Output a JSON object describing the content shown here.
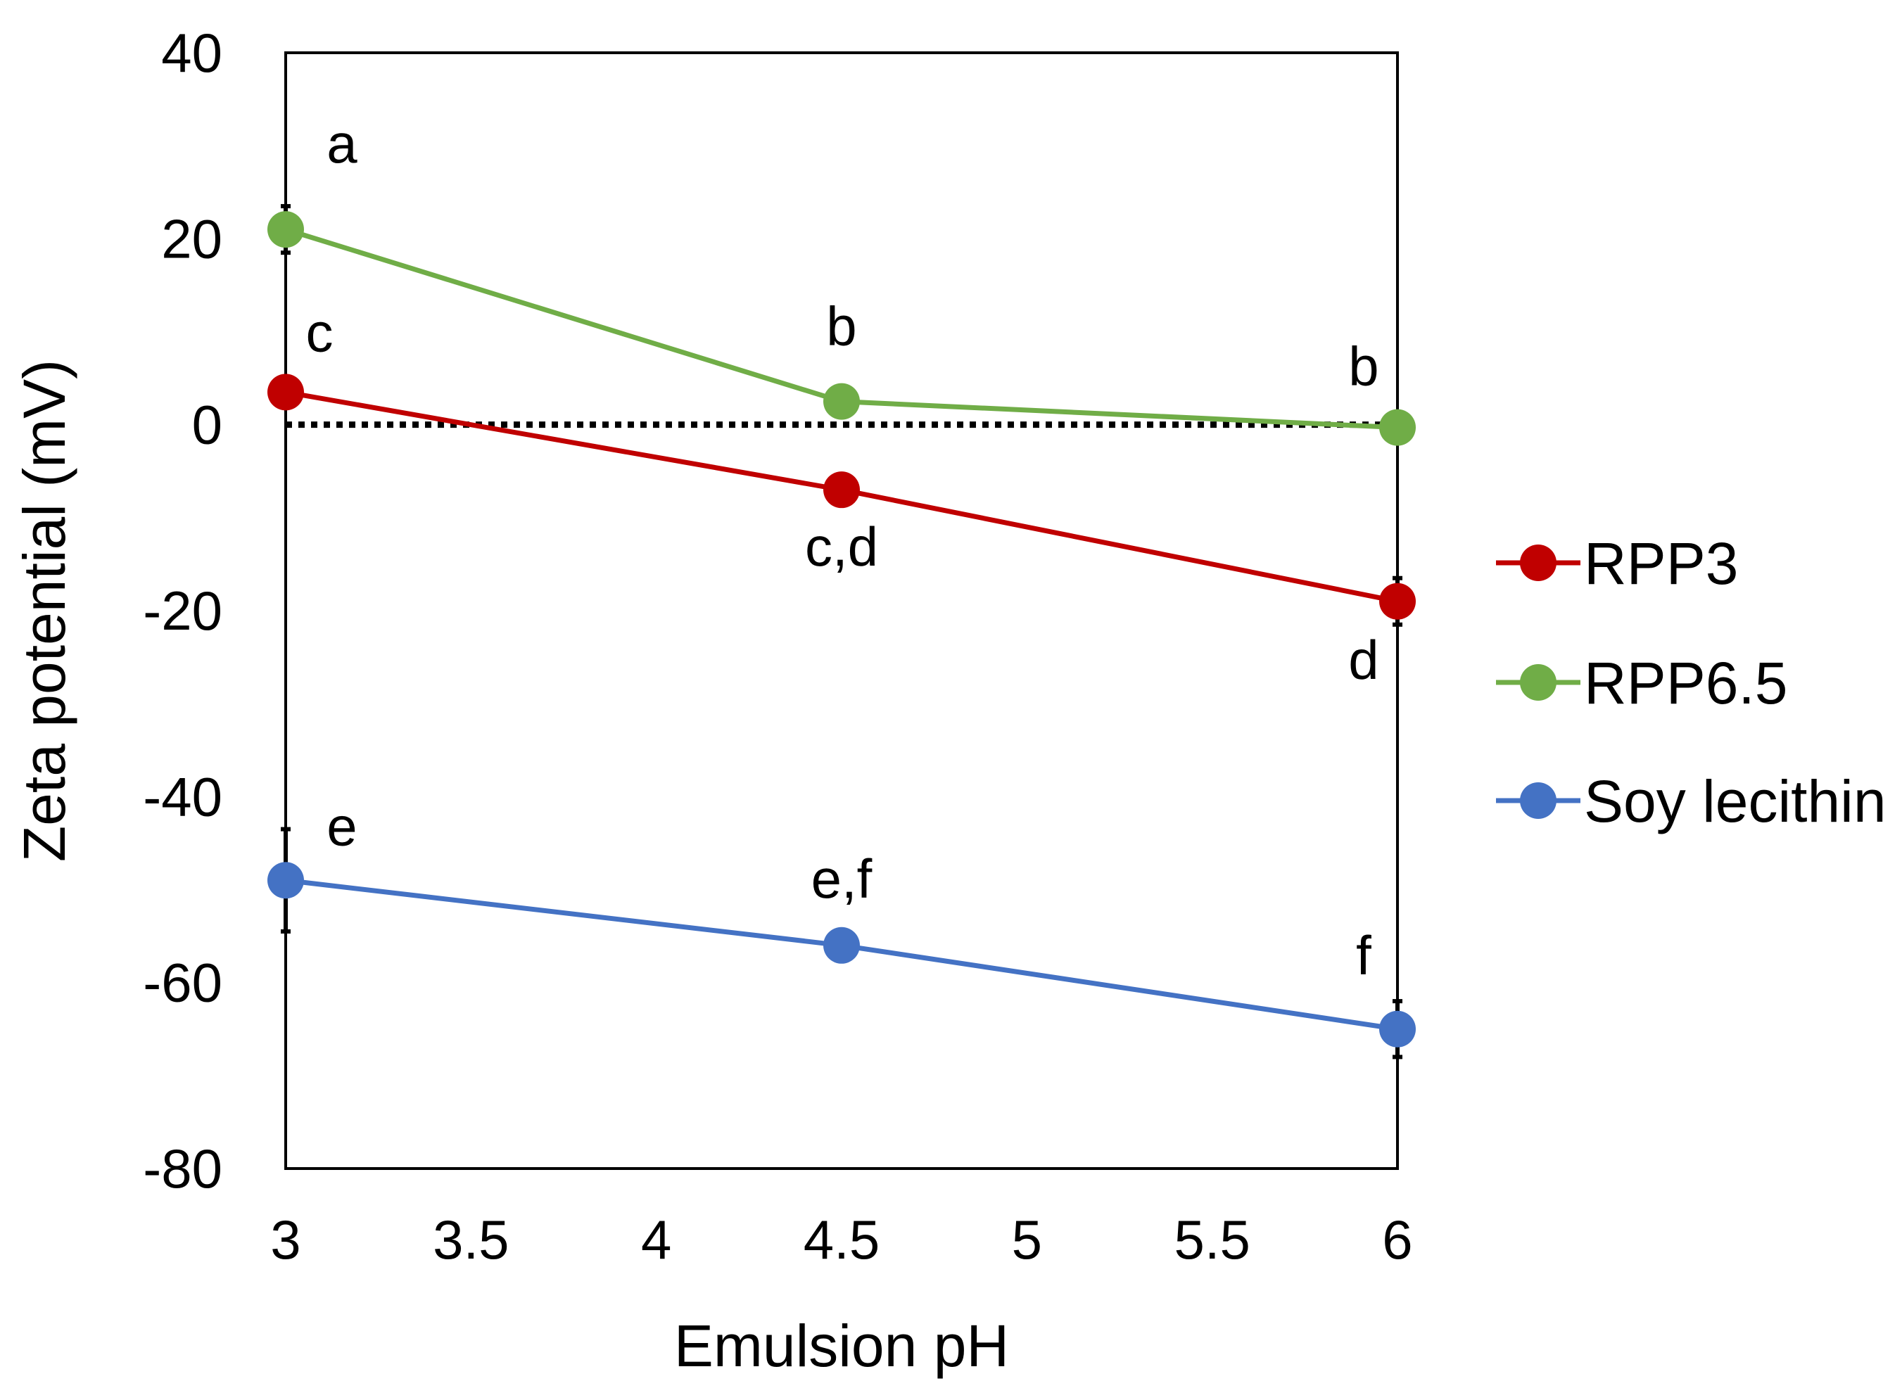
{
  "chart_data": {
    "type": "line",
    "xlabel": "Emulsion pH",
    "ylabel": "Zeta potential (mV)",
    "xlim": [
      3,
      6
    ],
    "ylim": [
      -80,
      40
    ],
    "x_ticks": [
      "3",
      "3.5",
      "4",
      "4.5",
      "5",
      "5.5",
      "6"
    ],
    "y_ticks": [
      "40",
      "20",
      "0",
      "-20",
      "-40",
      "-60",
      "-80"
    ],
    "reference_line": {
      "y": 0,
      "style": "dotted"
    },
    "legend_position": "right",
    "series": [
      {
        "name": "RPP3",
        "color": "#C00000",
        "x": [
          3,
          4.5,
          6
        ],
        "values": [
          3.5,
          -7,
          -19
        ],
        "error": [
          0.6,
          0.6,
          2.5
        ],
        "letters": [
          "c",
          "c,d",
          "d"
        ],
        "letter_positions": [
          "above",
          "below",
          "below"
        ]
      },
      {
        "name": "RPP6.5",
        "color": "#70AD47",
        "x": [
          3,
          4.5,
          6
        ],
        "values": [
          21,
          2.5,
          -0.3
        ],
        "error": [
          2.5,
          0.5,
          0.5
        ],
        "letters": [
          "a",
          "b",
          "b"
        ],
        "letter_positions": [
          "above",
          "above",
          "above"
        ]
      },
      {
        "name": "Soy lecithin",
        "color": "#4472C4",
        "x": [
          3,
          4.5,
          6
        ],
        "values": [
          -49,
          -56,
          -65
        ],
        "error": [
          5.5,
          0.5,
          3
        ],
        "letters": [
          "e",
          "e,f",
          "f"
        ],
        "letter_positions": [
          "above",
          "above",
          "above"
        ]
      }
    ]
  }
}
